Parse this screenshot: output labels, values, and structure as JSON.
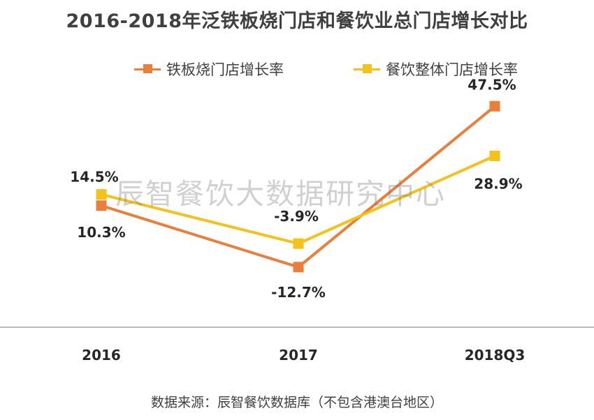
{
  "chart_data": {
    "type": "line",
    "title": "2016-2018年泛铁板烧门店和餐饮业总门店增长对比",
    "categories": [
      "2016",
      "2017",
      "2018Q3"
    ],
    "series": [
      {
        "name": "铁板烧门店增长率",
        "values": [
          10.3,
          -12.7,
          47.5
        ],
        "labels": [
          "10.3%",
          "-12.7%",
          "47.5%"
        ],
        "color": "#E97F3A"
      },
      {
        "name": "餐饮整体门店增长率",
        "values": [
          14.5,
          -3.9,
          28.9
        ],
        "labels": [
          "14.5%",
          "-3.9%",
          "28.9%"
        ],
        "color": "#F4C21B"
      }
    ],
    "ylim": [
      -20,
      50
    ],
    "grid": false,
    "legend": "top"
  },
  "watermark": "辰智餐饮大数据研究中心",
  "source": "数据来源：辰智餐饮数据库（不包含港澳台地区）"
}
